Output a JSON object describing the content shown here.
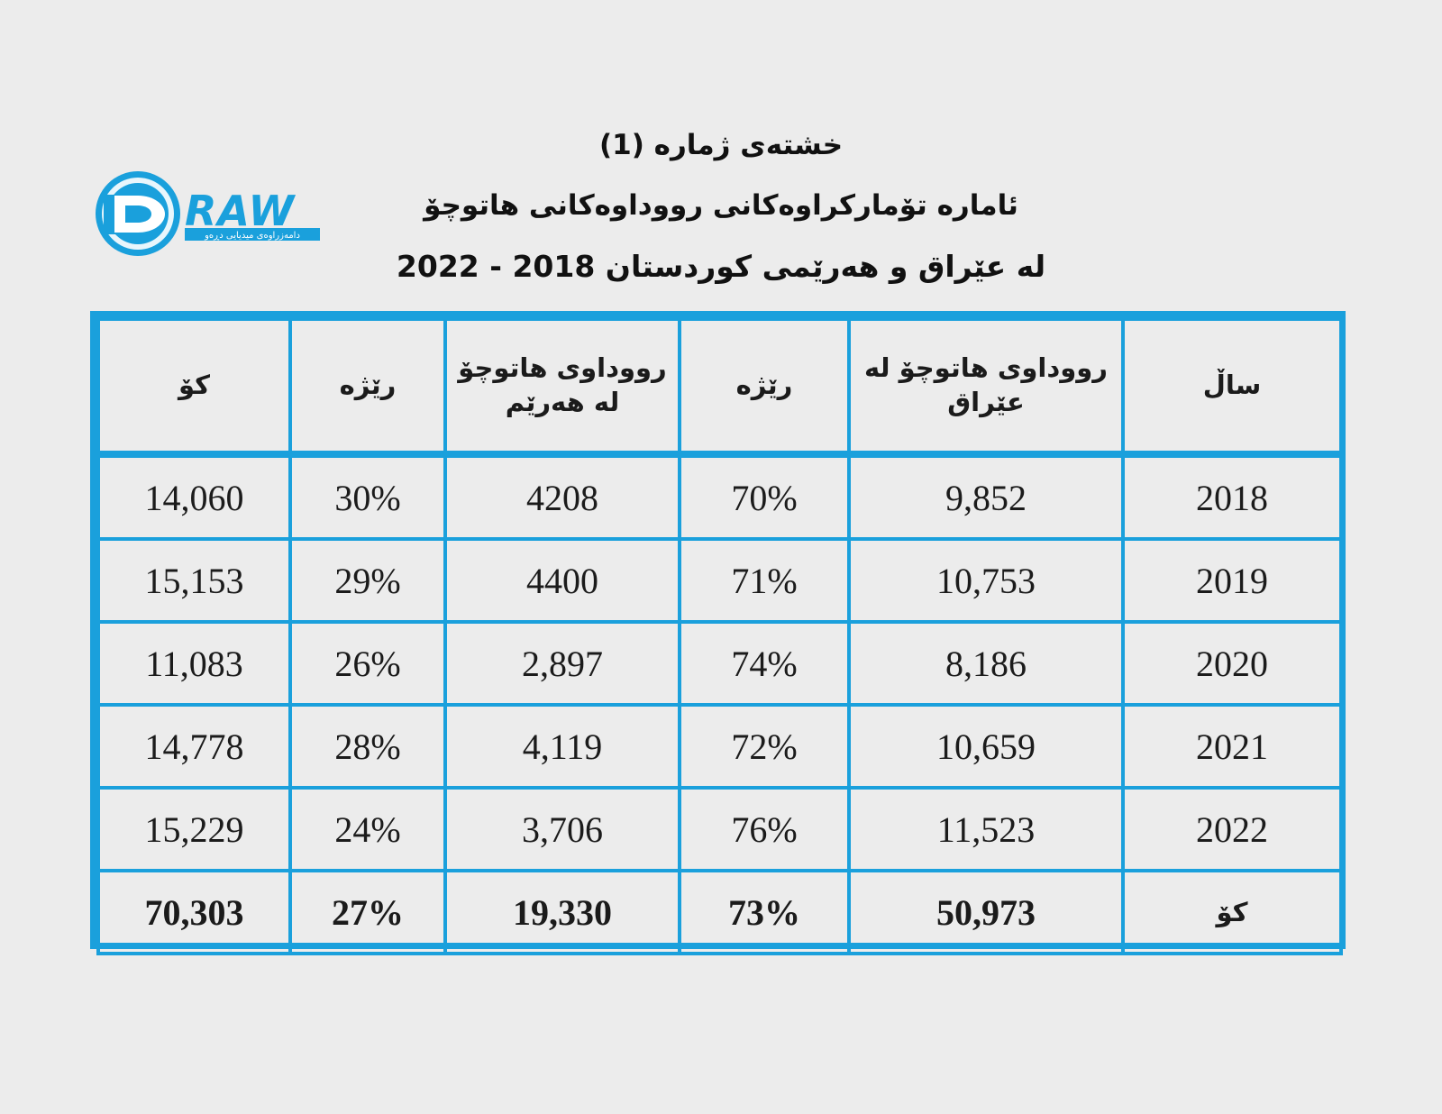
{
  "header": {
    "table_number": "خشتەی ژمارە (1)",
    "subtitle": "ئامارە تۆمارکراوەکانی رووداوەکانی هاتوچۆ",
    "years_line": "لە عێراق و هەرێمی کوردستان 2018 - 2022"
  },
  "logo": {
    "brand": "DRAW",
    "tagline": "دامەزراوەی میدیایی دڕەو",
    "color": "#1aa0dc"
  },
  "table": {
    "headers": {
      "year": "ساڵ",
      "iraq": "رووداوی هاتوچۆ لە عێراق",
      "iraq_rate": "رێژە",
      "region": "رووداوی هاتوچۆ لە هەرێم",
      "region_rate": "رێژە",
      "total": "کۆ"
    },
    "rows": [
      {
        "year": "2018",
        "iraq": "9,852",
        "iraq_rate": "70%",
        "region": "4208",
        "region_rate": "30%",
        "total": "14,060"
      },
      {
        "year": "2019",
        "iraq": "10,753",
        "iraq_rate": "71%",
        "region": "4400",
        "region_rate": "29%",
        "total": "15,153"
      },
      {
        "year": "2020",
        "iraq": "8,186",
        "iraq_rate": "74%",
        "region": "2,897",
        "region_rate": "26%",
        "total": "11,083"
      },
      {
        "year": "2021",
        "iraq": "10,659",
        "iraq_rate": "72%",
        "region": "4,119",
        "region_rate": "28%",
        "total": "14,778"
      },
      {
        "year": "2022",
        "iraq": "11,523",
        "iraq_rate": "76%",
        "region": "3,706",
        "region_rate": "24%",
        "total": "15,229"
      }
    ],
    "totals": {
      "label": "کۆ",
      "iraq": "50,973",
      "iraq_rate": "73%",
      "region": "19,330",
      "region_rate": "27%",
      "total": "70,303"
    },
    "border_color": "#1aa0dc"
  }
}
